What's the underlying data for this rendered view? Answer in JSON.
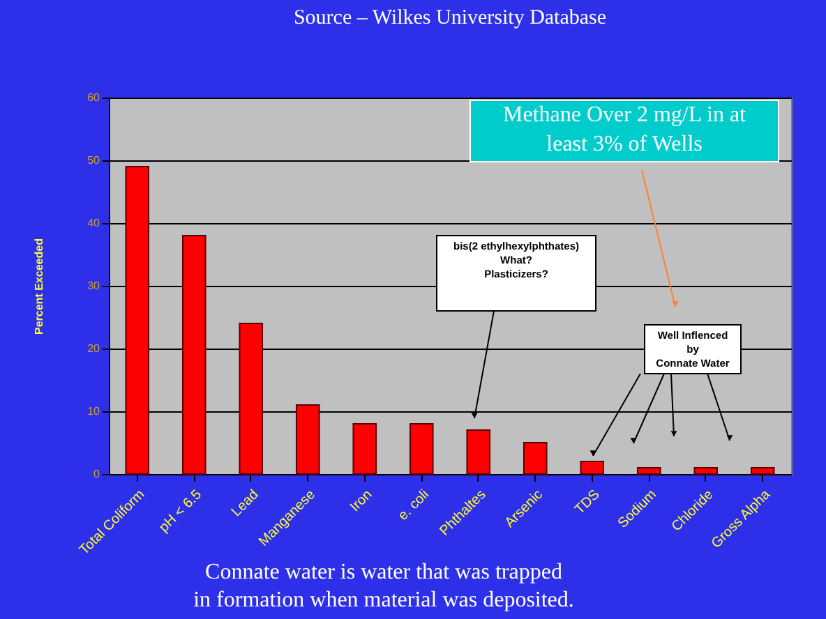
{
  "chart_data": {
    "type": "bar",
    "title": "Source – Wilkes University Database",
    "ylabel": "Percent Exceeded",
    "categories": [
      "Total Coliform",
      "pH < 6.5",
      "Lead",
      "Manganese",
      "Iron",
      "e. coli",
      "Phthaltes",
      "Arsenic",
      "TDS",
      "Sodium",
      "Chloride",
      "Gross Alpha"
    ],
    "values": [
      49,
      38,
      24,
      11,
      8,
      8,
      7,
      5,
      2,
      1,
      1,
      1
    ],
    "color": "#ff0000",
    "ylim": [
      0,
      60
    ],
    "yticks": [
      0,
      10,
      20,
      30,
      40,
      50,
      60
    ],
    "grid": "y",
    "annotations": [
      "bis(2 ethylhexylphthates)\nWhat?\nPlasticizers?",
      "Well Inflenced\nby\nConnate Water",
      "Methane Over 2 mg/L in at\nleast 3% of Wells",
      "Connate water is water that was trapped\nin formation when material was deposited."
    ]
  }
}
